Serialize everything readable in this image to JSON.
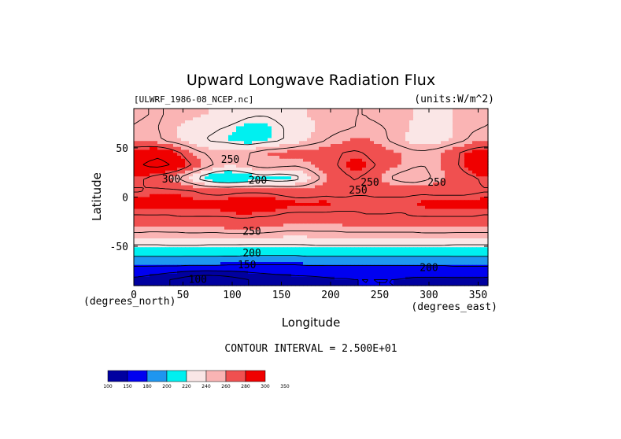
{
  "chart_data": {
    "type": "heatmap",
    "title": "Upward Longwave Radiation Flux",
    "subtitle_left": "[ULWRF_1986-08_NCEP.nc]",
    "subtitle_right": "(units:W/m^2)",
    "xlabel": "Longitude",
    "ylabel": "Latitude",
    "x_unit_note": "(degrees_east)",
    "y_unit_note": "(degrees_north)",
    "xlim": [
      0,
      360
    ],
    "ylim": [
      -90,
      90
    ],
    "x_ticks": [
      0,
      50,
      100,
      150,
      200,
      250,
      300,
      350
    ],
    "y_ticks": [
      -50,
      0,
      50
    ],
    "contour_interval_text": "CONTOUR INTERVAL = 2.500E+01",
    "contour_labels": [
      {
        "text": "250",
        "lon": 98,
        "lat": 38
      },
      {
        "text": "300",
        "lon": 38,
        "lat": 18
      },
      {
        "text": "200",
        "lon": 126,
        "lat": 17
      },
      {
        "text": "250",
        "lon": 240,
        "lat": 15
      },
      {
        "text": "250",
        "lon": 228,
        "lat": 7
      },
      {
        "text": "250",
        "lon": 308,
        "lat": 15
      },
      {
        "text": "250",
        "lon": 120,
        "lat": -35
      },
      {
        "text": "200",
        "lon": 120,
        "lat": -57
      },
      {
        "text": "150",
        "lon": 115,
        "lat": -69
      },
      {
        "text": "100",
        "lon": 65,
        "lat": -84
      },
      {
        "text": "200",
        "lon": 300,
        "lat": -72
      }
    ],
    "colorbar": {
      "levels": [
        100,
        150,
        180,
        200,
        220,
        240,
        260,
        280,
        300,
        350
      ],
      "colors": [
        "#0000a0",
        "#0000f0",
        "#1e96f0",
        "#00f0f0",
        "#fae6e6",
        "#fab4b4",
        "#f05050",
        "#f00000"
      ]
    },
    "grid": [
      [
        248,
        250,
        252,
        248,
        246,
        244,
        242,
        240,
        238,
        236,
        232,
        228,
        226,
        226,
        228,
        232,
        236,
        240,
        242,
        244,
        246,
        248,
        250,
        250,
        248,
        246,
        244,
        242,
        240,
        238,
        236,
        238,
        240,
        242,
        244,
        246
      ],
      [
        252,
        254,
        250,
        244,
        240,
        236,
        232,
        228,
        226,
        224,
        220,
        216,
        216,
        218,
        222,
        226,
        230,
        236,
        240,
        244,
        246,
        248,
        250,
        252,
        252,
        250,
        246,
        242,
        238,
        234,
        232,
        236,
        240,
        244,
        248,
        250
      ],
      [
        260,
        258,
        252,
        246,
        240,
        234,
        228,
        224,
        222,
        220,
        216,
        212,
        214,
        218,
        222,
        226,
        232,
        238,
        244,
        250,
        254,
        258,
        262,
        262,
        258,
        252,
        246,
        240,
        234,
        230,
        230,
        236,
        242,
        248,
        254,
        258
      ],
      [
        288,
        292,
        296,
        290,
        278,
        266,
        254,
        248,
        246,
        244,
        246,
        248,
        254,
        260,
        262,
        264,
        266,
        268,
        268,
        266,
        272,
        276,
        278,
        274,
        268,
        266,
        262,
        258,
        254,
        254,
        258,
        262,
        270,
        278,
        286,
        290
      ],
      [
        298,
        304,
        306,
        302,
        292,
        280,
        268,
        256,
        246,
        242,
        244,
        250,
        256,
        258,
        256,
        254,
        252,
        256,
        262,
        268,
        274,
        280,
        284,
        282,
        276,
        268,
        262,
        258,
        252,
        250,
        256,
        262,
        270,
        280,
        292,
        300
      ],
      [
        278,
        272,
        264,
        258,
        250,
        236,
        222,
        210,
        202,
        198,
        200,
        206,
        212,
        214,
        210,
        212,
        218,
        230,
        244,
        256,
        266,
        272,
        276,
        272,
        264,
        254,
        246,
        240,
        238,
        244,
        252,
        258,
        262,
        268,
        272,
        278
      ],
      [
        274,
        276,
        278,
        278,
        278,
        276,
        274,
        272,
        270,
        270,
        272,
        272,
        272,
        272,
        270,
        268,
        266,
        266,
        268,
        270,
        270,
        270,
        272,
        272,
        270,
        270,
        272,
        272,
        272,
        272,
        270,
        270,
        270,
        270,
        272,
        274
      ],
      [
        284,
        286,
        286,
        284,
        284,
        284,
        282,
        282,
        284,
        286,
        288,
        290,
        290,
        288,
        286,
        284,
        282,
        282,
        282,
        282,
        280,
        280,
        280,
        280,
        280,
        280,
        278,
        278,
        280,
        282,
        284,
        284,
        284,
        284,
        284,
        284
      ],
      [
        274,
        274,
        274,
        274,
        276,
        276,
        276,
        276,
        276,
        276,
        278,
        278,
        276,
        276,
        274,
        272,
        272,
        272,
        272,
        272,
        272,
        272,
        272,
        274,
        274,
        274,
        274,
        274,
        276,
        276,
        276,
        276,
        276,
        276,
        276,
        274
      ],
      [
        258,
        256,
        256,
        256,
        256,
        258,
        258,
        258,
        258,
        260,
        260,
        260,
        260,
        258,
        256,
        254,
        254,
        254,
        254,
        254,
        254,
        256,
        256,
        256,
        256,
        256,
        256,
        256,
        256,
        258,
        258,
        258,
        258,
        258,
        258,
        258
      ],
      [
        232,
        232,
        232,
        234,
        234,
        234,
        234,
        232,
        232,
        232,
        232,
        232,
        232,
        232,
        232,
        232,
        232,
        232,
        234,
        234,
        234,
        234,
        234,
        234,
        234,
        234,
        234,
        234,
        234,
        234,
        234,
        234,
        232,
        232,
        232,
        232
      ],
      [
        206,
        206,
        206,
        206,
        206,
        206,
        206,
        206,
        206,
        206,
        206,
        204,
        204,
        204,
        204,
        204,
        204,
        206,
        206,
        206,
        206,
        206,
        206,
        206,
        206,
        206,
        206,
        206,
        206,
        206,
        206,
        206,
        206,
        206,
        206,
        206
      ],
      [
        174,
        174,
        174,
        174,
        174,
        172,
        172,
        172,
        172,
        170,
        170,
        170,
        170,
        170,
        170,
        170,
        170,
        172,
        172,
        172,
        172,
        172,
        172,
        172,
        172,
        172,
        172,
        172,
        172,
        172,
        172,
        172,
        174,
        174,
        174,
        174
      ],
      [
        144,
        140,
        134,
        126,
        120,
        112,
        106,
        104,
        106,
        112,
        118,
        124,
        130,
        134,
        138,
        140,
        142,
        142,
        144,
        146,
        148,
        148,
        150,
        150,
        150,
        150,
        150,
        148,
        146,
        146,
        146,
        146,
        146,
        146,
        146,
        146
      ]
    ]
  }
}
